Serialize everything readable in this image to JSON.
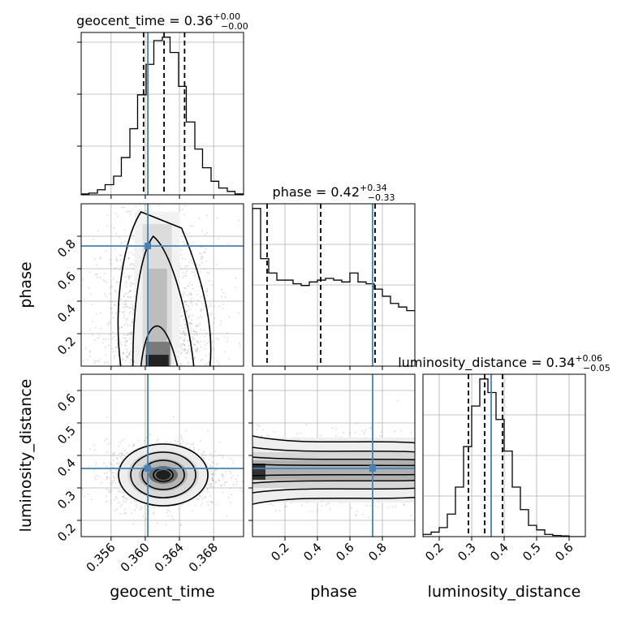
{
  "chart_data": {
    "type": "corner",
    "parameters": [
      {
        "name": "geocent_time",
        "title": "geocent_time = 0.36",
        "err_plus": "+0.00",
        "err_minus": "−0.00",
        "range": [
          0.3525,
          0.3715
        ],
        "ticks": [
          0.356,
          0.36,
          0.364,
          0.368
        ],
        "tick_labels": [
          "0.356",
          "0.360",
          "0.364",
          "0.368"
        ],
        "quantiles": [
          0.3598,
          0.3622,
          0.3646
        ],
        "truth": 0.3603,
        "histogram": {
          "bin_edges": [
            0.3525,
            0.3534,
            0.3544,
            0.3553,
            0.3563,
            0.3572,
            0.3582,
            0.3591,
            0.3601,
            0.361,
            0.362,
            0.3629,
            0.3639,
            0.3648,
            0.3658,
            0.3667,
            0.3677,
            0.3686,
            0.3696,
            0.3705,
            0.3715
          ],
          "counts": [
            0.5,
            1,
            3,
            6,
            11,
            22,
            39,
            59,
            77,
            91,
            93,
            84,
            64,
            43,
            27,
            16,
            8,
            4,
            2,
            0.5
          ]
        }
      },
      {
        "name": "phase",
        "title": "phase = 0.42",
        "err_plus": "+0.34",
        "err_minus": "−0.33",
        "range": [
          0.0,
          1.0
        ],
        "ticks": [
          0.2,
          0.4,
          0.6,
          0.8
        ],
        "tick_labels": [
          "0.2",
          "0.4",
          "0.6",
          "0.8"
        ],
        "quantiles": [
          0.09,
          0.42,
          0.755
        ],
        "truth": 0.74,
        "histogram": {
          "bin_edges": [
            0.0,
            0.05,
            0.1,
            0.15,
            0.2,
            0.25,
            0.3,
            0.35,
            0.4,
            0.45,
            0.5,
            0.55,
            0.6,
            0.65,
            0.7,
            0.75,
            0.8,
            0.85,
            0.9,
            0.95,
            1.0
          ],
          "counts": [
            88,
            60,
            52,
            48,
            48,
            46,
            45,
            47,
            48,
            49,
            48,
            47,
            52,
            47,
            46,
            43,
            39,
            35,
            33,
            31
          ]
        }
      },
      {
        "name": "luminosity_distance",
        "title": "luminosity_distance = 0.34",
        "err_plus": "+0.06",
        "err_minus": "−0.05",
        "range": [
          0.15,
          0.65
        ],
        "ticks": [
          0.2,
          0.3,
          0.4,
          0.5,
          0.6
        ],
        "tick_labels": [
          "0.2",
          "0.3",
          "0.4",
          "0.5",
          "0.6"
        ],
        "quantiles": [
          0.29,
          0.34,
          0.395
        ],
        "truth": 0.36,
        "histogram": {
          "bin_edges": [
            0.15,
            0.175,
            0.2,
            0.225,
            0.25,
            0.275,
            0.3,
            0.325,
            0.35,
            0.375,
            0.4,
            0.425,
            0.45,
            0.475,
            0.5,
            0.525,
            0.55,
            0.575,
            0.6,
            0.625,
            0.65
          ],
          "counts": [
            1,
            2,
            4,
            10,
            22,
            40,
            58,
            70,
            64,
            52,
            38,
            22,
            12,
            5,
            3,
            1,
            0.5,
            0.3,
            0,
            0
          ]
        }
      }
    ],
    "pairs": [
      {
        "x": "geocent_time",
        "y": "phase",
        "truth_x": 0.3603,
        "truth_y": 0.74,
        "peak": [
          0.3614,
          0.03
        ],
        "spread": [
          0.0035,
          0.45
        ]
      },
      {
        "x": "geocent_time",
        "y": "luminosity_distance",
        "truth_x": 0.3603,
        "truth_y": 0.36,
        "peak": [
          0.3621,
          0.34
        ],
        "spread": [
          0.0033,
          0.05
        ]
      },
      {
        "x": "phase",
        "y": "luminosity_distance",
        "truth_x": 0.74,
        "truth_y": 0.36,
        "peak": [
          0.02,
          0.355
        ],
        "spread": [
          0.5,
          0.05
        ]
      }
    ],
    "truth_color": "#4682b4",
    "grid": true
  }
}
